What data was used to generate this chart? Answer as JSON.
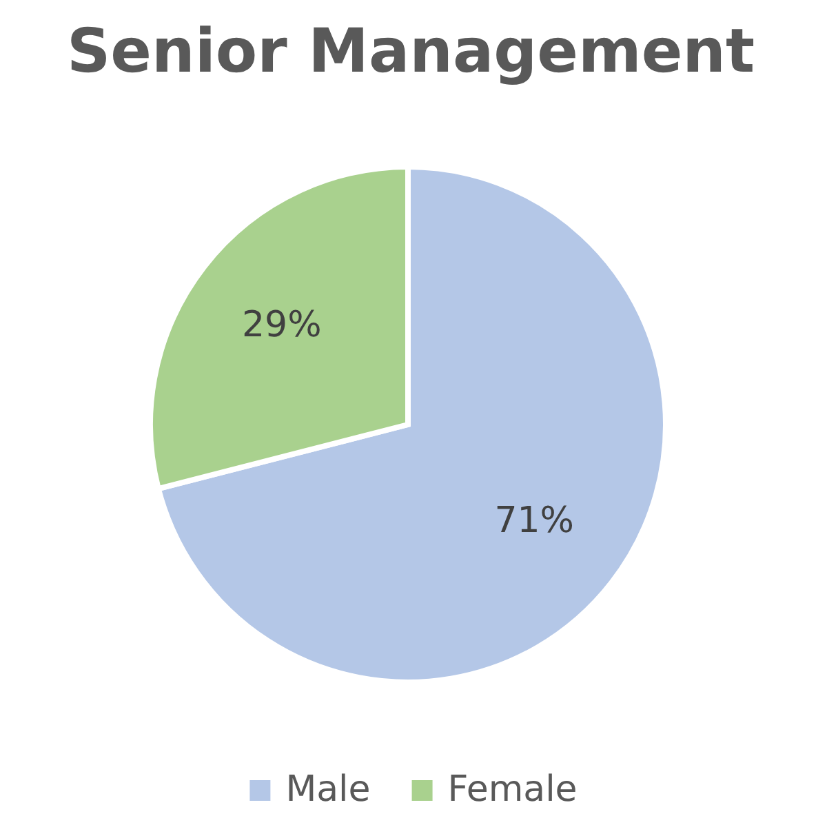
{
  "chart_data": {
    "type": "pie",
    "title": "Senior Management",
    "categories": [
      "Male",
      "Female"
    ],
    "values": [
      71,
      29
    ],
    "colors": [
      "#b4c7e7",
      "#a9d18e"
    ],
    "value_labels": [
      "71%",
      "29%"
    ],
    "legend": "bottom"
  }
}
